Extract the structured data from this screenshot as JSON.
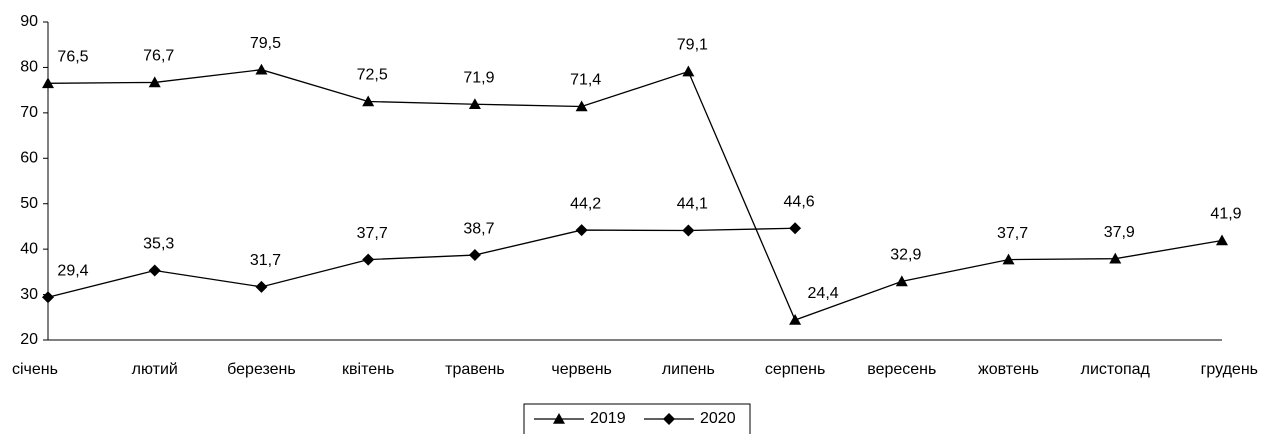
{
  "chart_data": {
    "type": "line",
    "categories": [
      "січень",
      "лютий",
      "березень",
      "квітень",
      "травень",
      "червень",
      "липень",
      "серпень",
      "вересень",
      "жовтень",
      "листопад",
      "грудень"
    ],
    "series": [
      {
        "name": "2019",
        "color": "#000000",
        "marker": "triangle",
        "values": [
          76.5,
          76.7,
          79.5,
          72.5,
          71.9,
          71.4,
          79.1,
          24.4,
          32.9,
          37.7,
          37.9,
          41.9
        ],
        "value_labels": [
          "76,5",
          "76,7",
          "79,5",
          "72,5",
          "71,9",
          "71,4",
          "79,1",
          "24,4",
          "32,9",
          "37,7",
          "37,9",
          "41,9"
        ]
      },
      {
        "name": "2020",
        "color": "#000000",
        "marker": "diamond",
        "values": [
          29.4,
          35.3,
          31.7,
          37.7,
          38.7,
          44.2,
          44.1,
          44.6,
          null,
          null,
          null,
          null
        ],
        "value_labels": [
          "29,4",
          "35,3",
          "31,7",
          "37,7",
          "38,7",
          "44,2",
          "44,1",
          "44,6",
          null,
          null,
          null,
          null
        ]
      }
    ],
    "ylim": [
      20,
      90
    ],
    "yticks": [
      20,
      30,
      40,
      50,
      60,
      70,
      80,
      90
    ],
    "grid": false,
    "legend": "bottom"
  }
}
